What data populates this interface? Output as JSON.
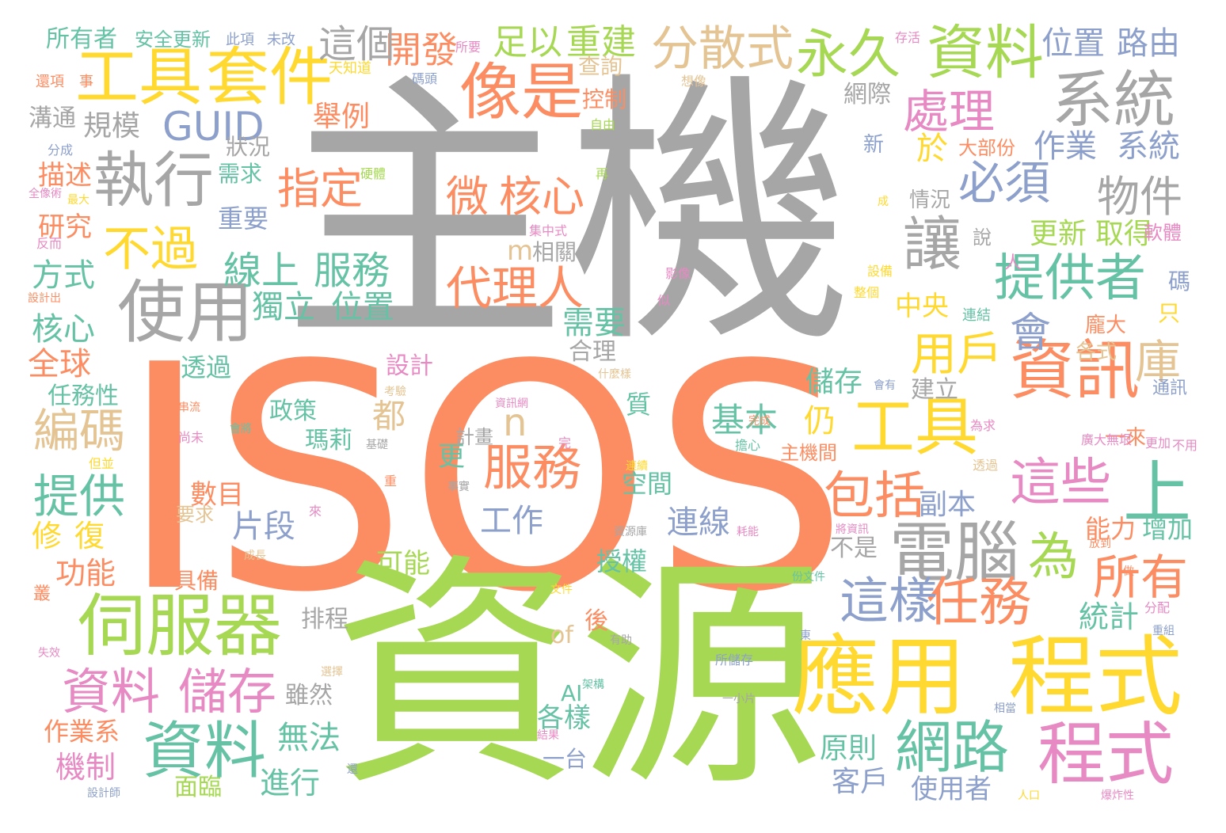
{
  "palette": {
    "gray": "#a6a6a6",
    "orange": "#fc8d62",
    "green": "#a6d854",
    "yellow": "#ffd92f",
    "blue": "#8da0cb",
    "pink": "#e78ac3",
    "teal": "#66c2a5",
    "tan": "#e5c494"
  },
  "words": [
    {
      "text": "主機",
      "color": "#a6a6a6"
    },
    {
      "text": "ISOS",
      "color": "#fc8d62"
    },
    {
      "text": "資源",
      "color": "#a6d854"
    },
    {
      "text": "工具",
      "color": "#ffd92f"
    },
    {
      "text": "套件",
      "color": "#ffd92f"
    },
    {
      "text": "像是",
      "color": "#fc8d62"
    },
    {
      "text": "分散式",
      "color": "#e5c494"
    },
    {
      "text": "永久",
      "color": "#a6d854"
    },
    {
      "text": "資料",
      "color": "#a6d854"
    },
    {
      "text": "系統",
      "color": "#a6a6a6"
    },
    {
      "text": "執行",
      "color": "#a6a6a6"
    },
    {
      "text": "GUID",
      "color": "#8da0cb"
    },
    {
      "text": "使用",
      "color": "#a6a6a6"
    },
    {
      "text": "不過",
      "color": "#ffd92f"
    },
    {
      "text": "處理",
      "color": "#e78ac3"
    },
    {
      "text": "必須",
      "color": "#8da0cb"
    },
    {
      "text": "物件",
      "color": "#a6a6a6"
    },
    {
      "text": "微",
      "color": "#fc8d62"
    },
    {
      "text": "核心",
      "color": "#fc8d62"
    },
    {
      "text": "指定",
      "color": "#fc8d62"
    },
    {
      "text": "提供者",
      "color": "#66c2a5"
    },
    {
      "text": "讓",
      "color": "#a6a6a6"
    },
    {
      "text": "代理人",
      "color": "#fc8d62"
    },
    {
      "text": "資訊",
      "color": "#fc8d62"
    },
    {
      "text": "會",
      "color": "#8da0cb"
    },
    {
      "text": "工具",
      "color": "#ffd92f"
    },
    {
      "text": "服務",
      "color": "#fc8d62"
    },
    {
      "text": "這些",
      "color": "#e78ac3"
    },
    {
      "text": "上",
      "color": "#66c2a5"
    },
    {
      "text": "電腦",
      "color": "#a6a6a6"
    },
    {
      "text": "為",
      "color": "#a6d854"
    },
    {
      "text": "伺服器",
      "color": "#a6d854"
    },
    {
      "text": "應用",
      "color": "#ffd92f"
    },
    {
      "text": "程式",
      "color": "#ffd92f"
    },
    {
      "text": "程式",
      "color": "#e78ac3"
    },
    {
      "text": "資料",
      "color": "#e78ac3"
    },
    {
      "text": "儲存",
      "color": "#e78ac3"
    },
    {
      "text": "資料",
      "color": "#66c2a5"
    },
    {
      "text": "網路",
      "color": "#66c2a5"
    },
    {
      "text": "任務",
      "color": "#fc8d62"
    },
    {
      "text": "這樣",
      "color": "#8da0cb"
    },
    {
      "text": "所有",
      "color": "#fc8d62"
    },
    {
      "text": "編碼",
      "color": "#e5c494"
    },
    {
      "text": "提供",
      "color": "#66c2a5"
    },
    {
      "text": "包括",
      "color": "#fc8d62"
    },
    {
      "text": "用戶",
      "color": "#ffd92f"
    },
    {
      "text": "線上",
      "color": "#66c2a5"
    },
    {
      "text": "服務",
      "color": "#66c2a5"
    },
    {
      "text": "獨立",
      "color": "#66c2a5"
    },
    {
      "text": "位置",
      "color": "#66c2a5"
    },
    {
      "text": "庫",
      "color": "#e5c494"
    },
    {
      "text": "開發",
      "color": "#fc8d62"
    },
    {
      "text": "這個",
      "color": "#a6a6a6"
    },
    {
      "text": "足以",
      "color": "#a6d854"
    },
    {
      "text": "重建",
      "color": "#a6d854"
    },
    {
      "text": "位置",
      "color": "#8da0cb"
    },
    {
      "text": "路由",
      "color": "#8da0cb"
    },
    {
      "text": "規模",
      "color": "#a6a6a6"
    },
    {
      "text": "舉例",
      "color": "#fc8d62"
    },
    {
      "text": "作業",
      "color": "#8da0cb"
    },
    {
      "text": "系統",
      "color": "#8da0cb"
    },
    {
      "text": "於",
      "color": "#ffd92f"
    },
    {
      "text": "需求",
      "color": "#66c2a5"
    },
    {
      "text": "狀況",
      "color": "#a6a6a6"
    },
    {
      "text": "重要",
      "color": "#8da0cb"
    },
    {
      "text": "更新",
      "color": "#a6d854"
    },
    {
      "text": "取得",
      "color": "#a6d854"
    },
    {
      "text": "儲存",
      "color": "#66c2a5"
    },
    {
      "text": "基本",
      "color": "#66c2a5"
    },
    {
      "text": "仍",
      "color": "#ffd92f"
    },
    {
      "text": "都",
      "color": "#e5c494"
    },
    {
      "text": "n",
      "color": "#e5c494"
    },
    {
      "text": "m",
      "color": "#e5c494"
    },
    {
      "text": "需要",
      "color": "#66c2a5"
    },
    {
      "text": "合理",
      "color": "#a6a6a6"
    },
    {
      "text": "中央",
      "color": "#ffd92f"
    },
    {
      "text": "副本",
      "color": "#8da0cb"
    },
    {
      "text": "工作",
      "color": "#8da0cb"
    },
    {
      "text": "片段",
      "color": "#8da0cb"
    },
    {
      "text": "數目",
      "color": "#fc8d62"
    },
    {
      "text": "連線",
      "color": "#8da0cb"
    },
    {
      "text": "空間",
      "color": "#66c2a5"
    },
    {
      "text": "授權",
      "color": "#66c2a5"
    },
    {
      "text": "可能",
      "color": "#a6d854"
    },
    {
      "text": "政策",
      "color": "#66c2a5"
    },
    {
      "text": "瑪莉",
      "color": "#66c2a5"
    },
    {
      "text": "設計",
      "color": "#e78ac3"
    },
    {
      "text": "透過",
      "color": "#66c2a5"
    },
    {
      "text": "全球",
      "color": "#fc8d62"
    },
    {
      "text": "核心",
      "color": "#66c2a5"
    },
    {
      "text": "方式",
      "color": "#66c2a5"
    },
    {
      "text": "研究",
      "color": "#fc8d62"
    },
    {
      "text": "描述",
      "color": "#fc8d62"
    },
    {
      "text": "溝通",
      "color": "#a6a6a6"
    },
    {
      "text": "所有者",
      "color": "#66c2a5"
    },
    {
      "text": "安全更新",
      "color": "#66c2a5"
    },
    {
      "text": "修",
      "color": "#ffd92f"
    },
    {
      "text": "復",
      "color": "#ffd92f"
    },
    {
      "text": "功能",
      "color": "#fc8d62"
    },
    {
      "text": "任務性",
      "color": "#66c2a5"
    },
    {
      "text": "無法",
      "color": "#66c2a5"
    },
    {
      "text": "雖然",
      "color": "#a6a6a6"
    },
    {
      "text": "進行",
      "color": "#66c2a5"
    },
    {
      "text": "機制",
      "color": "#e78ac3"
    },
    {
      "text": "面臨",
      "color": "#a6d854"
    },
    {
      "text": "作業系",
      "color": "#fc8d62"
    },
    {
      "text": "排程",
      "color": "#a6a6a6"
    },
    {
      "text": "原則",
      "color": "#66c2a5"
    },
    {
      "text": "客戶",
      "color": "#8da0cb"
    },
    {
      "text": "使用者",
      "color": "#8da0cb"
    },
    {
      "text": "統計",
      "color": "#66c2a5"
    },
    {
      "text": "各樣",
      "color": "#66c2a5"
    },
    {
      "text": "一台",
      "color": "#8da0cb"
    },
    {
      "text": "不是",
      "color": "#a6a6a6"
    },
    {
      "text": "能力",
      "color": "#fc8d62"
    },
    {
      "text": "增加",
      "color": "#66c2a5"
    },
    {
      "text": "更",
      "color": "#66c2a5"
    },
    {
      "text": "計畫",
      "color": "#a6a6a6"
    },
    {
      "text": "具備",
      "color": "#fc8d62"
    },
    {
      "text": "要求",
      "color": "#e5c494"
    },
    {
      "text": "建立",
      "color": "#a6a6a6"
    },
    {
      "text": "質",
      "color": "#66c2a5"
    },
    {
      "text": "of",
      "color": "#e5c494"
    },
    {
      "text": "AI",
      "color": "#66c2a5"
    },
    {
      "text": "後",
      "color": "#fc8d62"
    },
    {
      "text": "主機間",
      "color": "#fc8d62"
    },
    {
      "text": "情況",
      "color": "#a6a6a6"
    },
    {
      "text": "相關",
      "color": "#a6a6a6"
    },
    {
      "text": "軟體",
      "color": "#e78ac3"
    },
    {
      "text": "碼",
      "color": "#8da0cb"
    },
    {
      "text": "只",
      "color": "#ffd92f"
    },
    {
      "text": "龐大",
      "color": "#fc8d62"
    },
    {
      "text": "一來",
      "color": "#fc8d62"
    },
    {
      "text": "各式",
      "color": "#e5c494"
    },
    {
      "text": "新",
      "color": "#8da0cb"
    },
    {
      "text": "網際",
      "color": "#a6a6a6"
    },
    {
      "text": "查詢",
      "color": "#e5c494"
    },
    {
      "text": "控制",
      "color": "#fc8d62"
    },
    {
      "text": "大部份",
      "color": "#fc8d62"
    },
    {
      "text": "說",
      "color": "#a6a6a6"
    },
    {
      "text": "人",
      "color": "#e78ac3"
    },
    {
      "text": "此項",
      "color": "#8da0cb"
    },
    {
      "text": "未改",
      "color": "#8da0cb"
    },
    {
      "text": "所要",
      "color": "#e78ac3"
    },
    {
      "text": "存活",
      "color": "#e78ac3"
    },
    {
      "text": "還項",
      "color": "#fc8d62"
    },
    {
      "text": "事",
      "color": "#fc8d62"
    },
    {
      "text": "天知道",
      "color": "#ffd92f"
    },
    {
      "text": "碼頭",
      "color": "#8da0cb"
    },
    {
      "text": "想像",
      "color": "#e5c494"
    },
    {
      "text": "自由",
      "color": "#a6d854"
    },
    {
      "text": "分成",
      "color": "#8da0cb"
    },
    {
      "text": "全像術",
      "color": "#e78ac3"
    },
    {
      "text": "最大",
      "color": "#ffd92f"
    },
    {
      "text": "硬體",
      "color": "#a6d854"
    },
    {
      "text": "再",
      "color": "#a6d854"
    },
    {
      "text": "成",
      "color": "#ffd92f"
    },
    {
      "text": "集中式",
      "color": "#e78ac3"
    },
    {
      "text": "反而",
      "color": "#e78ac3"
    },
    {
      "text": "設計出",
      "color": "#fc8d62"
    },
    {
      "text": "影像",
      "color": "#e78ac3"
    },
    {
      "text": "似",
      "color": "#e78ac3"
    },
    {
      "text": "設備",
      "color": "#ffd92f"
    },
    {
      "text": "整個",
      "color": "#ffd92f"
    },
    {
      "text": "連結",
      "color": "#66c2a5"
    },
    {
      "text": "通訊",
      "color": "#8da0cb"
    },
    {
      "text": "會有",
      "color": "#8da0cb"
    },
    {
      "text": "為求",
      "color": "#e78ac3"
    },
    {
      "text": "廣大無垠",
      "color": "#e78ac3"
    },
    {
      "text": "更加",
      "color": "#e78ac3"
    },
    {
      "text": "不用",
      "color": "#e78ac3"
    },
    {
      "text": "考驗",
      "color": "#e5c494"
    },
    {
      "text": "什麼樣",
      "color": "#e5c494"
    },
    {
      "text": "資訊網",
      "color": "#e78ac3"
    },
    {
      "text": "串流",
      "color": "#fc8d62"
    },
    {
      "text": "會將",
      "color": "#66c2a5"
    },
    {
      "text": "尚未",
      "color": "#e78ac3"
    },
    {
      "text": "但並",
      "color": "#ffd92f"
    },
    {
      "text": "叢",
      "color": "#fc8d62"
    },
    {
      "text": "失效",
      "color": "#e78ac3"
    },
    {
      "text": "設計師",
      "color": "#8da0cb"
    },
    {
      "text": "完成",
      "color": "#fc8d62"
    },
    {
      "text": "擔心",
      "color": "#66c2a5"
    },
    {
      "text": "完",
      "color": "#e78ac3"
    },
    {
      "text": "基礎",
      "color": "#a6a6a6"
    },
    {
      "text": "成長",
      "color": "#e5c494"
    },
    {
      "text": "重",
      "color": "#fc8d62"
    },
    {
      "text": "連續",
      "color": "#ffd92f"
    },
    {
      "text": "來",
      "color": "#e78ac3"
    },
    {
      "text": "事實",
      "color": "#a6a6a6"
    },
    {
      "text": "資源庫",
      "color": "#a6a6a6"
    },
    {
      "text": "耗能",
      "color": "#e78ac3"
    },
    {
      "text": "將資訊",
      "color": "#e78ac3"
    },
    {
      "text": "放到",
      "color": "#fc8d62"
    },
    {
      "text": "做",
      "color": "#fc8d62"
    },
    {
      "text": "分配",
      "color": "#e78ac3"
    },
    {
      "text": "重組",
      "color": "#8da0cb"
    },
    {
      "text": "文件",
      "color": "#ffd92f"
    },
    {
      "text": "份文件",
      "color": "#66c2a5"
    },
    {
      "text": "有助",
      "color": "#a6a6a6"
    },
    {
      "text": "所儲存",
      "color": "#8da0cb"
    },
    {
      "text": "架構",
      "color": "#66c2a5"
    },
    {
      "text": "一小片",
      "color": "#a6a6a6"
    },
    {
      "text": "選擇",
      "color": "#e5c494"
    },
    {
      "text": "相當",
      "color": "#8da0cb"
    },
    {
      "text": "結果",
      "color": "#e78ac3"
    },
    {
      "text": "還",
      "color": "#8da0cb"
    },
    {
      "text": "人口",
      "color": "#ffd92f"
    },
    {
      "text": "爆炸性",
      "color": "#e78ac3"
    },
    {
      "text": "東",
      "color": "#8da0cb"
    },
    {
      "text": "透過",
      "color": "#e5c494"
    }
  ]
}
